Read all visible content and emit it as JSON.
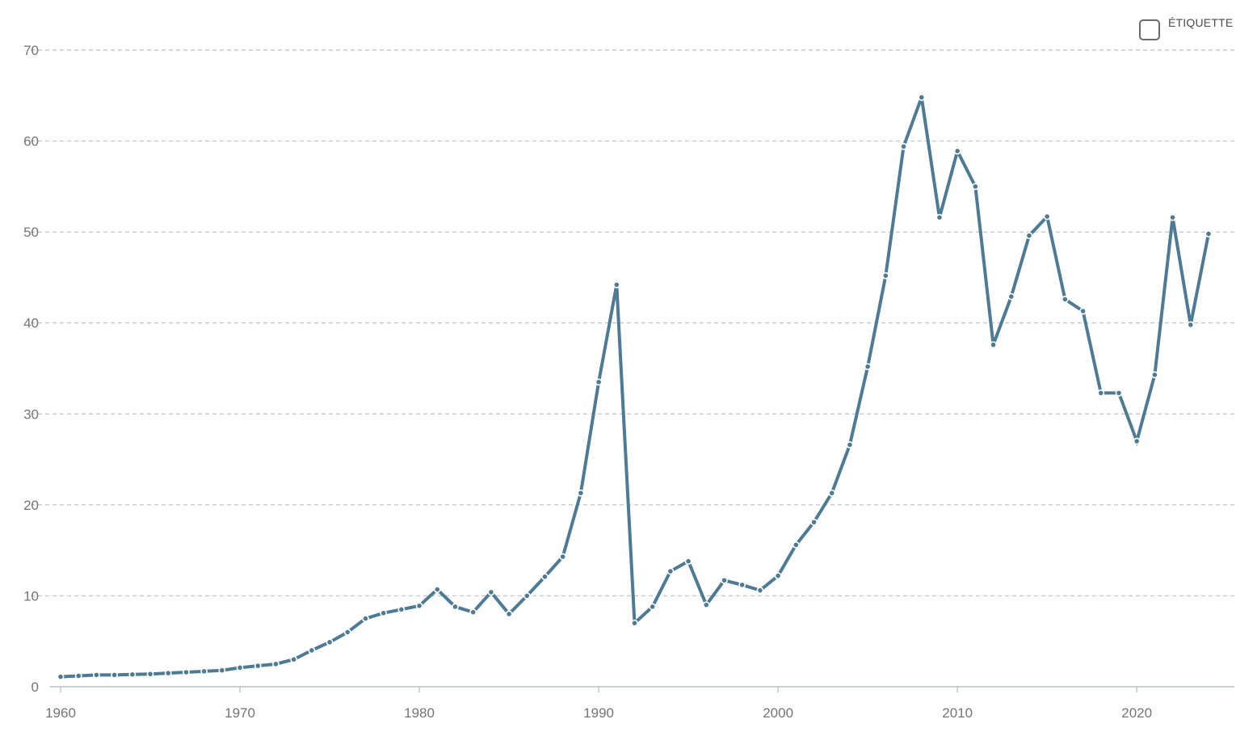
{
  "legend": {
    "label": "ÉTIQUETTE"
  },
  "colors": {
    "line": "#4d7a94",
    "grid": "#c8c8c8",
    "tick_text": "#757575"
  },
  "chart_data": {
    "type": "line",
    "title": "",
    "xlabel": "",
    "ylabel": "",
    "xlim": [
      1960,
      2025
    ],
    "ylim": [
      0,
      70
    ],
    "x_ticks": [
      1960,
      1970,
      1980,
      1990,
      2000,
      2010,
      2020
    ],
    "y_ticks": [
      0,
      10,
      20,
      30,
      40,
      50,
      60,
      70
    ],
    "grid": "horizontal-dashed",
    "legend_position": "top-right",
    "series": [
      {
        "x": [
          1960,
          1961,
          1962,
          1963,
          1964,
          1965,
          1966,
          1967,
          1968,
          1969,
          1970,
          1971,
          1972,
          1973,
          1974,
          1975,
          1976,
          1977,
          1978,
          1979,
          1980,
          1981,
          1982,
          1983,
          1984,
          1985,
          1986,
          1987,
          1988,
          1989,
          1990,
          1991,
          1992,
          1993,
          1994,
          1995,
          1996,
          1997,
          1998,
          1999,
          2000,
          2001,
          2002,
          2003,
          2004,
          2005,
          2006,
          2007,
          2008,
          2009,
          2010,
          2011,
          2012,
          2013,
          2014,
          2015,
          2016,
          2017,
          2018,
          2019,
          2020,
          2021,
          2022,
          2023,
          2024
        ],
        "values": [
          1.1,
          1.2,
          1.3,
          1.3,
          1.35,
          1.4,
          1.5,
          1.6,
          1.7,
          1.8,
          2.1,
          2.3,
          2.5,
          3.0,
          4.0,
          4.9,
          6.0,
          7.5,
          8.1,
          8.5,
          8.9,
          10.7,
          8.8,
          8.2,
          10.4,
          8.0,
          10.0,
          12.1,
          14.3,
          21.3,
          33.5,
          44.2,
          7.0,
          8.8,
          12.7,
          13.8,
          9.0,
          11.7,
          11.2,
          10.6,
          12.2,
          15.6,
          18.1,
          21.3,
          26.6,
          35.2,
          45.2,
          59.4,
          64.8,
          51.6,
          58.9,
          55.0,
          37.6,
          42.9,
          49.6,
          51.7,
          42.6,
          41.3,
          32.3,
          32.3,
          27.0,
          34.3,
          51.6,
          39.8,
          49.8
        ]
      }
    ]
  }
}
